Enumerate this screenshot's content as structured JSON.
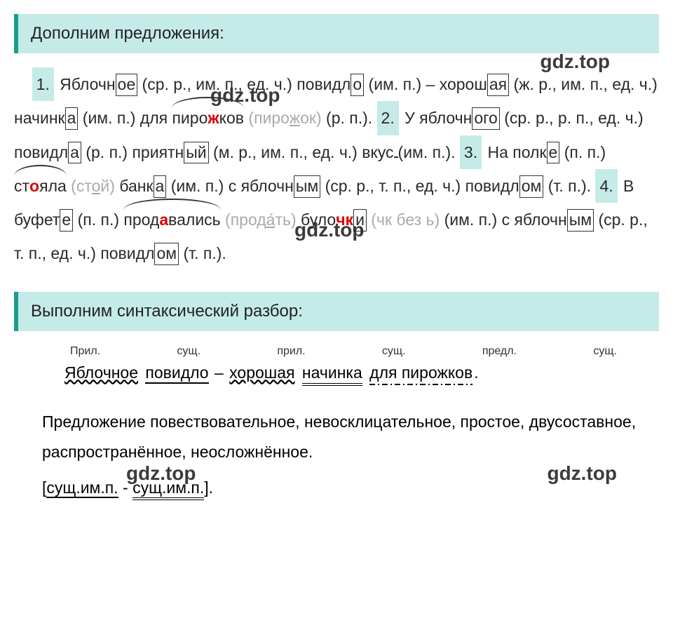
{
  "watermarks": {
    "w1": "gdz.top",
    "w2": "gdz.top",
    "w3": "gdz.top",
    "w4": "gdz.top",
    "w5": "gdz.top"
  },
  "headers": {
    "h1": "Дополним предложения:",
    "h2": "Выполним синтаксический разбор:"
  },
  "numbers": {
    "n1": "1.",
    "n2": "2.",
    "n3": "3.",
    "n4": "4."
  },
  "sentence1": {
    "w1a": "Яблочн",
    "w1b": "ое",
    "paren1": " (ср. р., им. п., ед. ч.) ",
    "w2a": "повидл",
    "w2b": "о",
    "paren2": " (им. п.) – ",
    "w3a": "хорош",
    "w3b": "ая",
    "paren3": " (ж. р., им. п., ед. ч.) ",
    "w4a": "начинк",
    "w4b": "а",
    "paren4": " (им. п.) для ",
    "w5a": "пиро",
    "w5b": "ж",
    "w5c": "ков",
    "paren5_open": "(",
    "paren5a": "пиро",
    "paren5b": "ж",
    "paren5c": "ок",
    "paren5_close": ")",
    "paren6": " (р. п.). "
  },
  "sentence2": {
    "w1": "У яблочн",
    "w1b": "ого",
    "paren1": " (ср. р., р. п., ед. ч.) ",
    "w2": "повидл",
    "w2b": "а",
    "paren2": "(р. п.) ",
    "w3": "приятн",
    "w3b": "ый",
    "paren3": " (м. р., им. п., ед. ч.) ",
    "w4": "вкус",
    "w4b": " ",
    "paren4": "(им. п.). "
  },
  "sentence3": {
    "w1": "На полк",
    "w1b": "е",
    "paren1": " (п. п.) ",
    "w2a": "ст",
    "w2b": "о",
    "w2c": "яла",
    "gray1": " (ст",
    "gray1b": "о",
    "gray1c": "й) ",
    "w3": "банк",
    "w3b": "а",
    "paren3": " (им. п.) с яблочн",
    "w3c": "ым",
    "paren4": " (ср. р., т. п., ед. ч.) ",
    "w4": "повидл",
    "w4b": "ом",
    "paren5": " (т. п.). "
  },
  "sentence4": {
    "w1": "В буфет",
    "w1b": "е",
    "paren1": " (п. п.) ",
    "w2a": "прод",
    "w2b": "а",
    "w2c": "вались",
    "gray1": "(прод",
    "gray1accent": "а",
    "gray1b": "ть) ",
    "w3a": "було",
    "w3b": "чк",
    "w3c": "и",
    "gray2": " (чк без ь) ",
    "paren2": "(им. п.) с яблочн",
    "w4b": "ым",
    "paren3": " (ср. р., т. п., ед. ч.) ",
    "w5": "повидл",
    "w5b": "ом",
    "paren4": " (т. п.)."
  },
  "pos": {
    "p1": "Прил.",
    "p2": "сущ.",
    "p3": "прил.",
    "p4": "сущ.",
    "p5": "предл.",
    "p6": "сущ."
  },
  "parse_sentence": {
    "w1": "Яблочное",
    "w2": "повидло",
    "dash": " – ",
    "w3": "хорошая",
    "w4": "начинка",
    "w5_prep": "для",
    "w5": "пирожков",
    "period": "."
  },
  "explanation": "Предложение повествовательное, невосклицательное, простое, двусоставное, распространённое, неосложнённое.",
  "schema": {
    "open": "[",
    "s1": "сущ.им.п.",
    "dash": "  -  ",
    "s2": "сущ.им.п.",
    "close": "]."
  },
  "colors": {
    "header_bg": "#c5ebe8",
    "header_border": "#1a9c8e",
    "red": "#e00000",
    "gray": "#aaaaaa",
    "text": "#2a2a2a"
  },
  "typography": {
    "body_fontsize": 23,
    "header_fontsize": 24,
    "pos_fontsize": 16,
    "watermark_fontsize": 28
  }
}
